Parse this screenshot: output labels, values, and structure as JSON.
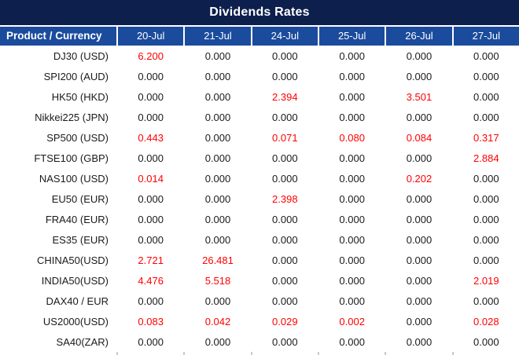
{
  "title": "Dividends Rates",
  "colors": {
    "title_bg": "#0d1f4d",
    "header_bg": "#1b4b9c",
    "alt_label_bg": "#cdd0d6",
    "alt_cell_bg": "#dcdcdc",
    "value_red": "#ff0000",
    "text_dark": "#1a1a1a"
  },
  "table": {
    "product_header": "Product / Currency",
    "date_headers": [
      "20-Jul",
      "21-Jul",
      "24-Jul",
      "25-Jul",
      "26-Jul",
      "27-Jul"
    ],
    "rows": [
      {
        "product": "DJ30 (USD)",
        "values": [
          "6.200",
          "0.000",
          "0.000",
          "0.000",
          "0.000",
          "0.000"
        ]
      },
      {
        "product": "SPI200 (AUD)",
        "values": [
          "0.000",
          "0.000",
          "0.000",
          "0.000",
          "0.000",
          "0.000"
        ]
      },
      {
        "product": "HK50 (HKD)",
        "values": [
          "0.000",
          "0.000",
          "2.394",
          "0.000",
          "3.501",
          "0.000"
        ]
      },
      {
        "product": "Nikkei225 (JPN)",
        "values": [
          "0.000",
          "0.000",
          "0.000",
          "0.000",
          "0.000",
          "0.000"
        ]
      },
      {
        "product": "SP500 (USD)",
        "values": [
          "0.443",
          "0.000",
          "0.071",
          "0.080",
          "0.084",
          "0.317"
        ]
      },
      {
        "product": "FTSE100 (GBP)",
        "values": [
          "0.000",
          "0.000",
          "0.000",
          "0.000",
          "0.000",
          "2.884"
        ]
      },
      {
        "product": "NAS100 (USD)",
        "values": [
          "0.014",
          "0.000",
          "0.000",
          "0.000",
          "0.202",
          "0.000"
        ]
      },
      {
        "product": "EU50 (EUR)",
        "values": [
          "0.000",
          "0.000",
          "2.398",
          "0.000",
          "0.000",
          "0.000"
        ]
      },
      {
        "product": "FRA40 (EUR)",
        "values": [
          "0.000",
          "0.000",
          "0.000",
          "0.000",
          "0.000",
          "0.000"
        ]
      },
      {
        "product": "ES35 (EUR)",
        "values": [
          "0.000",
          "0.000",
          "0.000",
          "0.000",
          "0.000",
          "0.000"
        ]
      },
      {
        "product": "CHINA50(USD)",
        "values": [
          "2.721",
          "26.481",
          "0.000",
          "0.000",
          "0.000",
          "0.000"
        ]
      },
      {
        "product": "INDIA50(USD)",
        "values": [
          "4.476",
          "5.518",
          "0.000",
          "0.000",
          "0.000",
          "2.019"
        ]
      },
      {
        "product": "DAX40 / EUR",
        "values": [
          "0.000",
          "0.000",
          "0.000",
          "0.000",
          "0.000",
          "0.000"
        ]
      },
      {
        "product": "US2000(USD)",
        "values": [
          "0.083",
          "0.042",
          "0.029",
          "0.002",
          "0.000",
          "0.028"
        ]
      },
      {
        "product": "SA40(ZAR)",
        "values": [
          "0.000",
          "0.000",
          "0.000",
          "0.000",
          "0.000",
          "0.000"
        ]
      }
    ]
  }
}
